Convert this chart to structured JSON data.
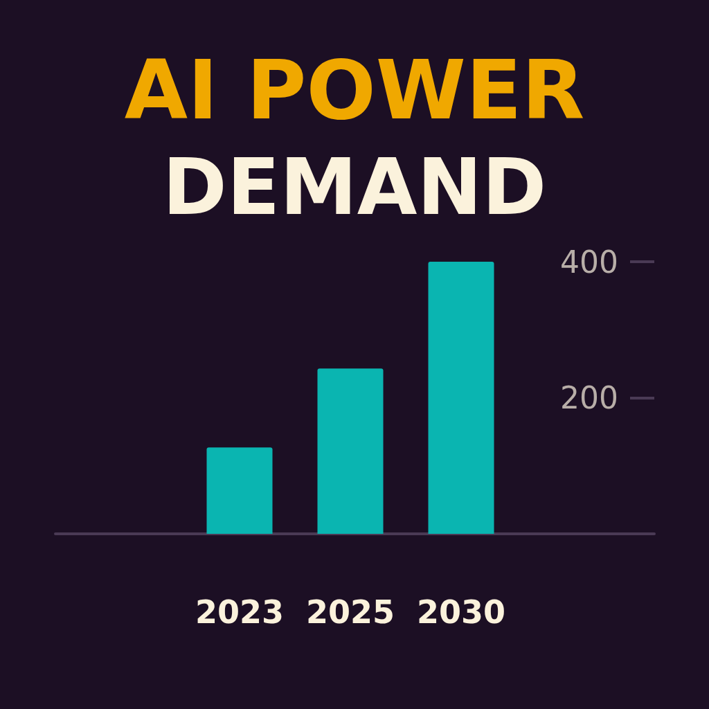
{
  "chart_data": {
    "type": "bar",
    "title": "AI POWER DEMAND",
    "categories": [
      "2023",
      "2025",
      "2030"
    ],
    "values": [
      127,
      243,
      400
    ],
    "color": "#0ab5b1",
    "ylim": [
      0,
      400
    ],
    "yticks": [
      {
        "value": 0,
        "label": null
      },
      200,
      400
    ],
    "grid": false
  }
}
